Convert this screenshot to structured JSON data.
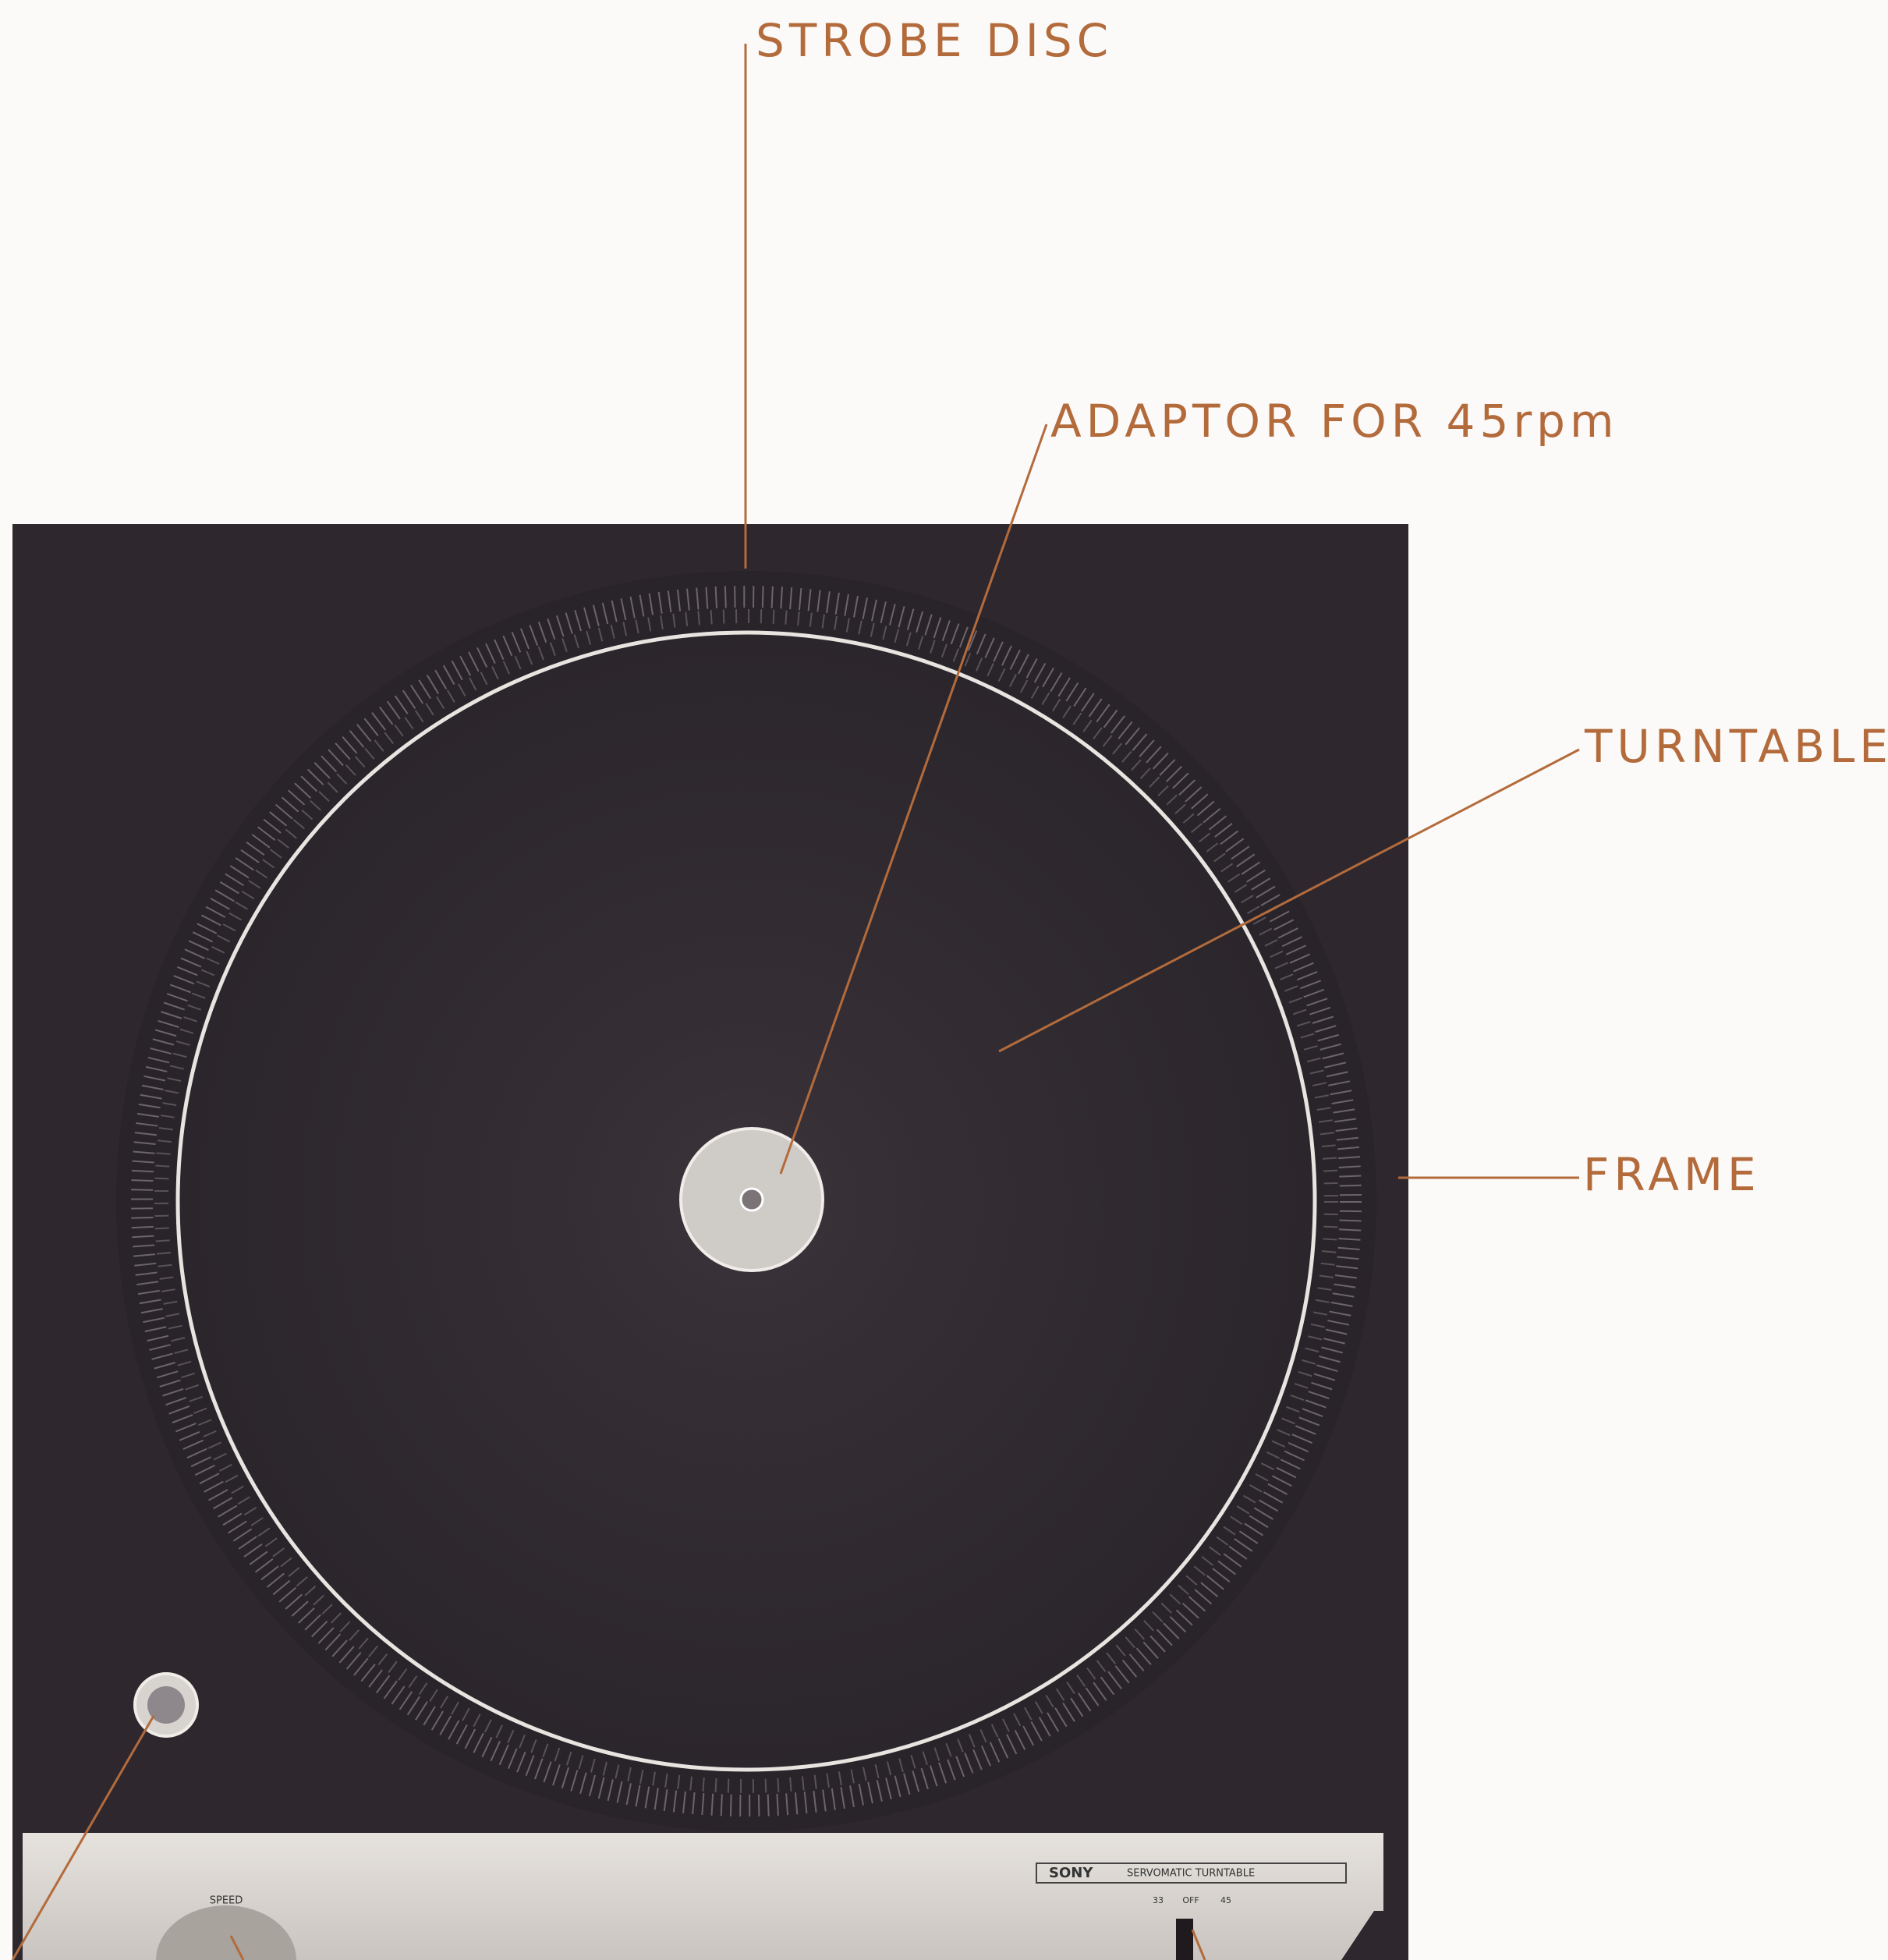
{
  "labels": {
    "strobe_disc": "STROBE DISC",
    "adaptor": "ADAPTOR FOR 45rpm",
    "turntable": "TURNTABLE",
    "frame": "FRAME"
  },
  "panel": {
    "brand": "SONY",
    "model": "SERVOMATIC TURNTABLE",
    "speed_label": "SPEED",
    "switch": [
      "33",
      "OFF",
      "45"
    ]
  }
}
